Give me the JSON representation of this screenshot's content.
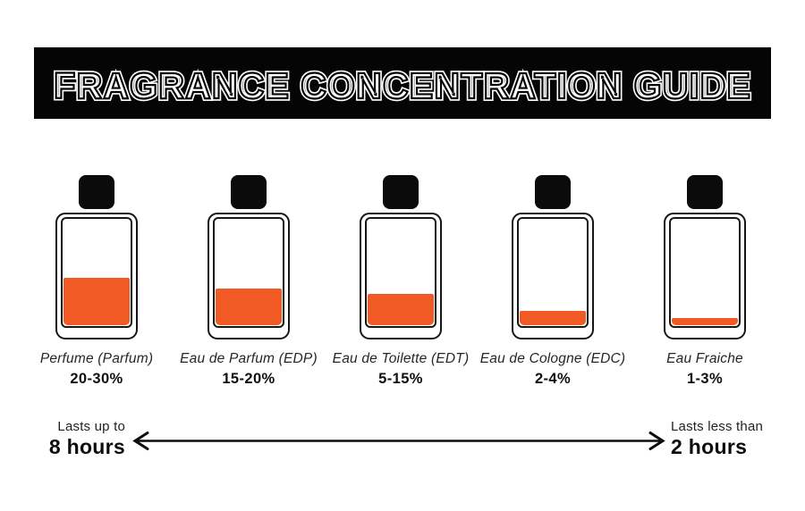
{
  "header": {
    "title": "FRAGRANCE CONCENTRATION GUIDE"
  },
  "colors": {
    "accent_orange": "#F15A24",
    "banner_black": "#050505",
    "outline_ink": "#161616"
  },
  "bottles": [
    {
      "name": "Perfume (Parfum)",
      "concentration": "20-30%",
      "fill_percent": 44
    },
    {
      "name": "Eau de Parfum (EDP)",
      "concentration": "15-20%",
      "fill_percent": 34
    },
    {
      "name": "Eau de Toilette (EDT)",
      "concentration": "5-15%",
      "fill_percent": 29
    },
    {
      "name": "Eau de Cologne (EDC)",
      "concentration": "2-4%",
      "fill_percent": 13
    },
    {
      "name": "Eau Fraiche",
      "concentration": "1-3%",
      "fill_percent": 7
    }
  ],
  "duration_scale": {
    "left_caption": "Lasts up to",
    "left_value": "8 hours",
    "right_caption": "Lasts less than",
    "right_value": "2 hours"
  }
}
